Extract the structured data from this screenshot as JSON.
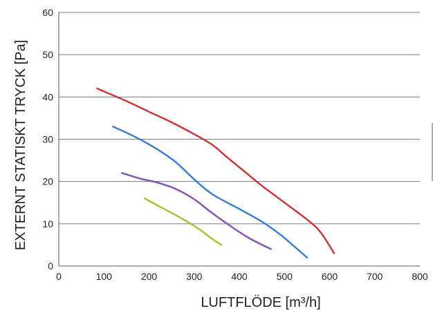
{
  "chart_data": {
    "type": "line",
    "xlabel": "LUFTFLÖDE [m³/h]",
    "ylabel": "EXTERNT STATISKT TRYCK [Pa]",
    "xlim": [
      0,
      800
    ],
    "ylim": [
      0,
      60
    ],
    "x_ticks": [
      0,
      100,
      200,
      300,
      400,
      500,
      600,
      700,
      800
    ],
    "y_ticks": [
      0,
      10,
      20,
      30,
      40,
      50,
      60
    ],
    "grid": "horizontal",
    "legend": "none",
    "series": [
      {
        "color": "#c8373b",
        "x": [
          85,
          150,
          200,
          250,
          300,
          340,
          370,
          410,
          450,
          500,
          550,
          580,
          610
        ],
        "y": [
          42,
          39,
          36.5,
          34,
          31.2,
          28.7,
          26,
          22.5,
          19,
          15,
          11,
          8,
          3
        ]
      },
      {
        "color": "#3c7fc9",
        "x": [
          120,
          170,
          220,
          260,
          300,
          340,
          400,
          450,
          490,
          520,
          550
        ],
        "y": [
          33,
          30.5,
          27.5,
          24.5,
          20.5,
          17,
          13.5,
          10.5,
          7.5,
          4.8,
          2
        ]
      },
      {
        "color": "#8357ad",
        "x": [
          140,
          180,
          220,
          260,
          300,
          340,
          380,
          420,
          470
        ],
        "y": [
          22,
          20.7,
          19.7,
          18.2,
          15.8,
          12.5,
          9.5,
          6.7,
          4
        ]
      },
      {
        "color": "#a4c33a",
        "x": [
          190,
          230,
          270,
          310,
          340,
          360
        ],
        "y": [
          16,
          13.7,
          11.4,
          8.8,
          6.4,
          5
        ]
      }
    ]
  }
}
